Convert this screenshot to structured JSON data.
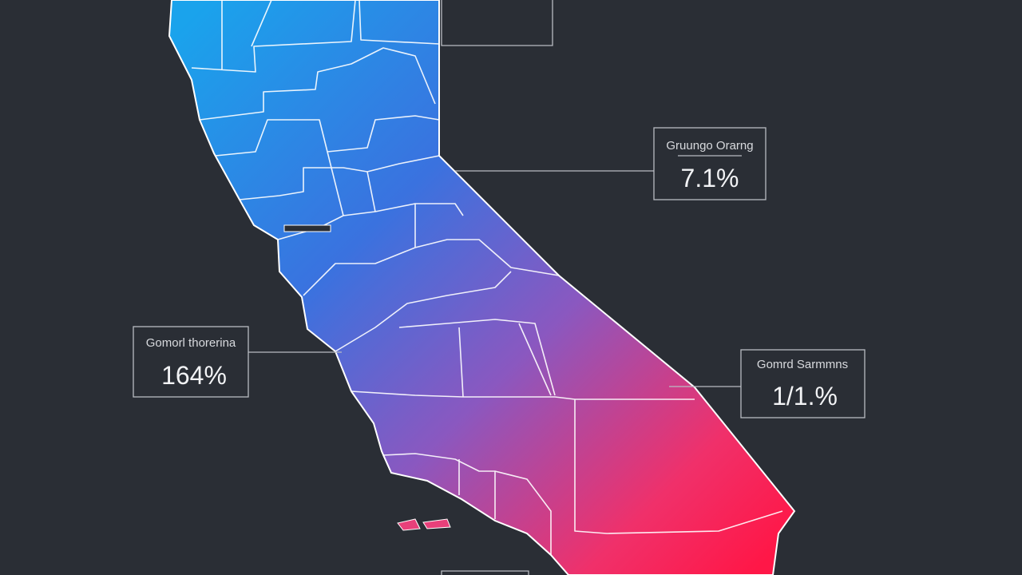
{
  "callouts": [
    {
      "label": "Gruungo Orarng",
      "value": "7.1%"
    },
    {
      "label": "Gomorl thorerina",
      "value": "164%"
    },
    {
      "label": "Gomrd Sarmmns",
      "value": "1/1.%"
    }
  ]
}
